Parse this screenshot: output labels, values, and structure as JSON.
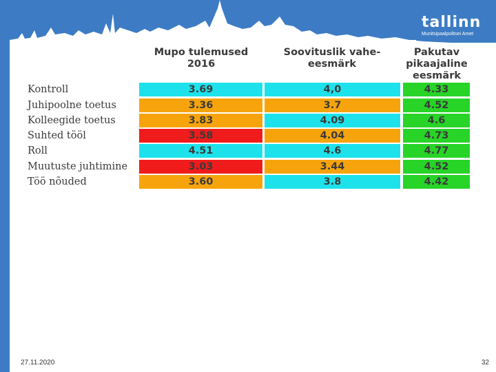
{
  "header": {
    "logo_text": "tallinn",
    "logo_subtitle": "Munitsipaalpolitsei Amet",
    "banner_color": "#3d7cc4"
  },
  "table": {
    "columns": [
      {
        "label": "Mupo tulemused 2016"
      },
      {
        "label": "Soovituslik vahe-eesmärk"
      },
      {
        "label": "Pakutav pikaajaline eesmärk"
      }
    ],
    "rows": [
      {
        "label": "Kontroll",
        "cells": [
          {
            "value": "3.69",
            "color": "#1de2ec"
          },
          {
            "value": "4,0",
            "color": "#1de2ec"
          },
          {
            "value": "4.33",
            "color": "#27d427"
          }
        ]
      },
      {
        "label": "Juhipoolne toetus",
        "cells": [
          {
            "value": "3.36",
            "color": "#f7a40c"
          },
          {
            "value": "3.7",
            "color": "#f7a40c"
          },
          {
            "value": "4.52",
            "color": "#27d427"
          }
        ]
      },
      {
        "label": "Kolleegide toetus",
        "cells": [
          {
            "value": "3.83",
            "color": "#f7a40c"
          },
          {
            "value": "4.09",
            "color": "#1de2ec"
          },
          {
            "value": "4.6",
            "color": "#27d427"
          }
        ]
      },
      {
        "label": "Suhted tööl",
        "cells": [
          {
            "value": "3.58",
            "color": "#f01b1b"
          },
          {
            "value": "4.04",
            "color": "#f7a40c"
          },
          {
            "value": "4.73",
            "color": "#27d427"
          }
        ]
      },
      {
        "label": "Roll",
        "cells": [
          {
            "value": "4.51",
            "color": "#1de2ec"
          },
          {
            "value": "4.6",
            "color": "#1de2ec"
          },
          {
            "value": "4.77",
            "color": "#27d427"
          }
        ]
      },
      {
        "label": "Muutuste juhtimine",
        "cells": [
          {
            "value": "3.03",
            "color": "#f01b1b"
          },
          {
            "value": "3.44",
            "color": "#f7a40c"
          },
          {
            "value": "4.52",
            "color": "#27d427"
          }
        ]
      },
      {
        "label": "Töö nõuded",
        "cells": [
          {
            "value": "3.60",
            "color": "#f7a40c"
          },
          {
            "value": "3.8",
            "color": "#1de2ec"
          },
          {
            "value": "4.42",
            "color": "#27d427"
          }
        ]
      }
    ]
  },
  "footer": {
    "date": "27.11.2020",
    "page_number": "32"
  }
}
